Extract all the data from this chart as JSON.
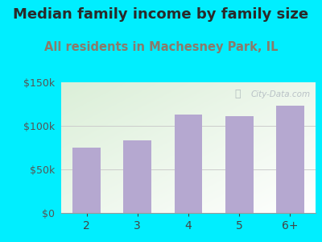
{
  "title": "Median family income by family size",
  "subtitle": "All residents in Machesney Park, IL",
  "categories": [
    "2",
    "3",
    "4",
    "5",
    "6+"
  ],
  "values": [
    75000,
    83000,
    113000,
    111000,
    123000
  ],
  "bar_color": "#b5a8d0",
  "title_color": "#2a2a2a",
  "subtitle_color": "#8a7a6a",
  "background_outer": "#00eeff",
  "background_inner_top_left": "#dcefd8",
  "background_inner_bottom_right": "#ffffff",
  "ylim": [
    0,
    150000
  ],
  "yticks": [
    0,
    50000,
    100000,
    150000
  ],
  "ytick_labels": [
    "$0",
    "$50k",
    "$100k",
    "$150k"
  ],
  "watermark": "City-Data.com",
  "title_fontsize": 13,
  "subtitle_fontsize": 10.5,
  "tick_fontsize": 9,
  "xtick_fontsize": 10
}
